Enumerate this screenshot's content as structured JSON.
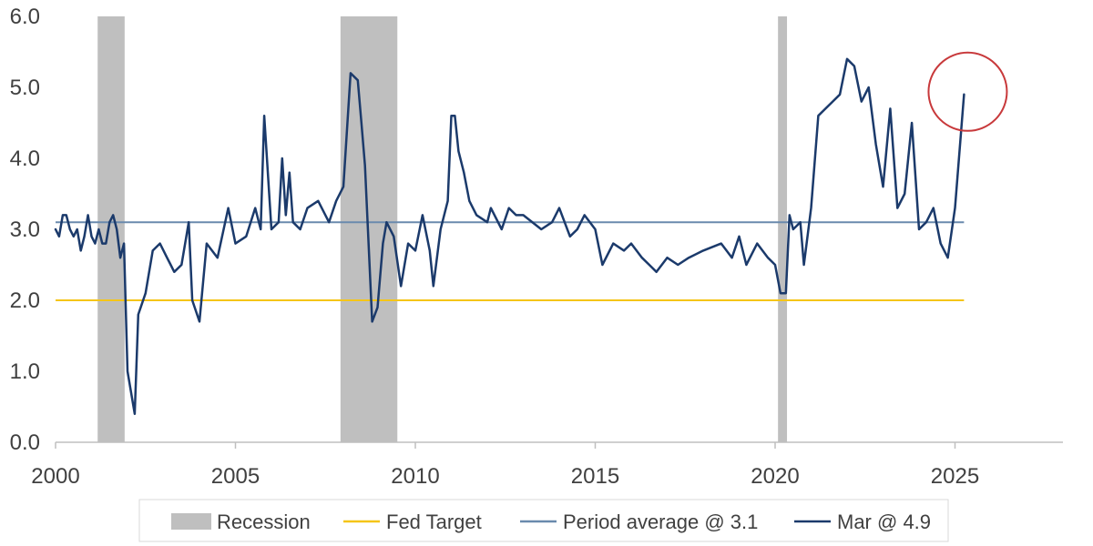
{
  "chart_data": {
    "type": "line",
    "title": "",
    "xlabel": "",
    "ylabel": "",
    "xlim": [
      2000,
      2028
    ],
    "ylim": [
      0,
      6
    ],
    "y_ticks": [
      0,
      1,
      2,
      3,
      4,
      5,
      6
    ],
    "y_tick_labels": [
      "0.0",
      "1.0",
      "2.0",
      "3.0",
      "4.0",
      "5.0",
      "6.0"
    ],
    "x_ticks": [
      2000,
      2005,
      2010,
      2015,
      2020,
      2025
    ],
    "x_tick_labels": [
      "2000",
      "2005",
      "2010",
      "2015",
      "2020",
      "2025"
    ],
    "grid": false,
    "legend_position": "bottom",
    "recessions": [
      {
        "start": 2001.17,
        "end": 2001.92
      },
      {
        "start": 2007.92,
        "end": 2009.5
      },
      {
        "start": 2020.08,
        "end": 2020.33
      }
    ],
    "fed_target": {
      "value": 2.0,
      "x_start": 2000,
      "x_end": 2025.25,
      "color": "#F5C518"
    },
    "period_average": {
      "value": 3.1,
      "x_start": 2000,
      "x_end": 2025.25,
      "color": "#6A8AAD"
    },
    "series": [
      {
        "name": "Mar @ 4.9",
        "color": "#1B3A6B",
        "x": [
          2000.0,
          2000.1,
          2000.2,
          2000.3,
          2000.4,
          2000.5,
          2000.6,
          2000.7,
          2000.8,
          2000.9,
          2001.0,
          2001.1,
          2001.2,
          2001.3,
          2001.4,
          2001.5,
          2001.6,
          2001.7,
          2001.8,
          2001.9,
          2002.0,
          2002.2,
          2002.3,
          2002.5,
          2002.7,
          2002.9,
          2003.1,
          2003.2,
          2003.3,
          2003.5,
          2003.7,
          2003.8,
          2004.0,
          2004.2,
          2004.5,
          2004.8,
          2005.0,
          2005.3,
          2005.55,
          2005.7,
          2005.8,
          2006.0,
          2006.2,
          2006.3,
          2006.4,
          2006.5,
          2006.6,
          2006.8,
          2007.0,
          2007.3,
          2007.6,
          2007.8,
          2008.0,
          2008.2,
          2008.4,
          2008.5,
          2008.6,
          2008.8,
          2008.95,
          2009.1,
          2009.2,
          2009.4,
          2009.6,
          2009.8,
          2010.0,
          2010.2,
          2010.4,
          2010.5,
          2010.7,
          2010.9,
          2011.0,
          2011.1,
          2011.2,
          2011.35,
          2011.5,
          2011.7,
          2012.0,
          2012.1,
          2012.4,
          2012.6,
          2012.8,
          2013.0,
          2013.5,
          2013.8,
          2014.0,
          2014.3,
          2014.5,
          2014.7,
          2015.0,
          2015.2,
          2015.5,
          2015.8,
          2016.0,
          2016.3,
          2016.5,
          2016.7,
          2017.0,
          2017.3,
          2017.6,
          2018.0,
          2018.5,
          2018.8,
          2019.0,
          2019.2,
          2019.5,
          2019.8,
          2020.0,
          2020.15,
          2020.3,
          2020.4,
          2020.5,
          2020.7,
          2020.8,
          2021.0,
          2021.2,
          2021.4,
          2021.6,
          2021.8,
          2022.0,
          2022.2,
          2022.4,
          2022.6,
          2022.8,
          2023.0,
          2023.2,
          2023.4,
          2023.6,
          2023.8,
          2024.0,
          2024.2,
          2024.4,
          2024.6,
          2024.8,
          2025.0,
          2025.25
        ],
        "values": [
          3.0,
          2.9,
          3.2,
          3.2,
          3.0,
          2.9,
          3.0,
          2.7,
          2.9,
          3.2,
          2.9,
          2.8,
          3.0,
          2.8,
          2.8,
          3.1,
          3.2,
          3.0,
          2.6,
          2.8,
          1.0,
          0.4,
          1.8,
          2.1,
          2.7,
          2.8,
          2.6,
          2.5,
          2.4,
          2.5,
          3.1,
          2.0,
          1.7,
          2.8,
          2.6,
          3.3,
          2.8,
          2.9,
          3.3,
          3.0,
          4.6,
          3.0,
          3.1,
          4.0,
          3.2,
          3.8,
          3.1,
          3.0,
          3.3,
          3.4,
          3.1,
          3.4,
          3.6,
          5.2,
          5.1,
          4.5,
          3.9,
          1.7,
          1.9,
          2.8,
          3.1,
          2.9,
          2.2,
          2.8,
          2.7,
          3.2,
          2.7,
          2.2,
          3.0,
          3.4,
          4.6,
          4.6,
          4.1,
          3.8,
          3.4,
          3.2,
          3.1,
          3.3,
          3.0,
          3.3,
          3.2,
          3.2,
          3.0,
          3.1,
          3.3,
          2.9,
          3.0,
          3.2,
          3.0,
          2.5,
          2.8,
          2.7,
          2.8,
          2.6,
          2.5,
          2.4,
          2.6,
          2.5,
          2.6,
          2.7,
          2.8,
          2.6,
          2.9,
          2.5,
          2.8,
          2.6,
          2.5,
          2.1,
          2.1,
          3.2,
          3.0,
          3.1,
          2.5,
          3.3,
          4.6,
          4.7,
          4.8,
          4.9,
          5.4,
          5.3,
          4.8,
          5.0,
          4.2,
          3.6,
          4.7,
          3.3,
          3.5,
          4.5,
          3.0,
          3.1,
          3.3,
          2.8,
          2.6,
          3.3,
          4.9
        ]
      }
    ],
    "legend": [
      {
        "label": "Recession",
        "type": "box",
        "color": "#BFBFBF"
      },
      {
        "label": "Fed Target",
        "type": "line",
        "color": "#F5C518"
      },
      {
        "label": "Period average @ 3.1",
        "type": "line",
        "color": "#6A8AAD"
      },
      {
        "label": "Mar @ 4.9",
        "type": "line",
        "color": "#1B3A6B"
      }
    ],
    "annotation": {
      "type": "circle",
      "x": 2025.1,
      "y": 4.9,
      "color": "#C8393B"
    }
  }
}
